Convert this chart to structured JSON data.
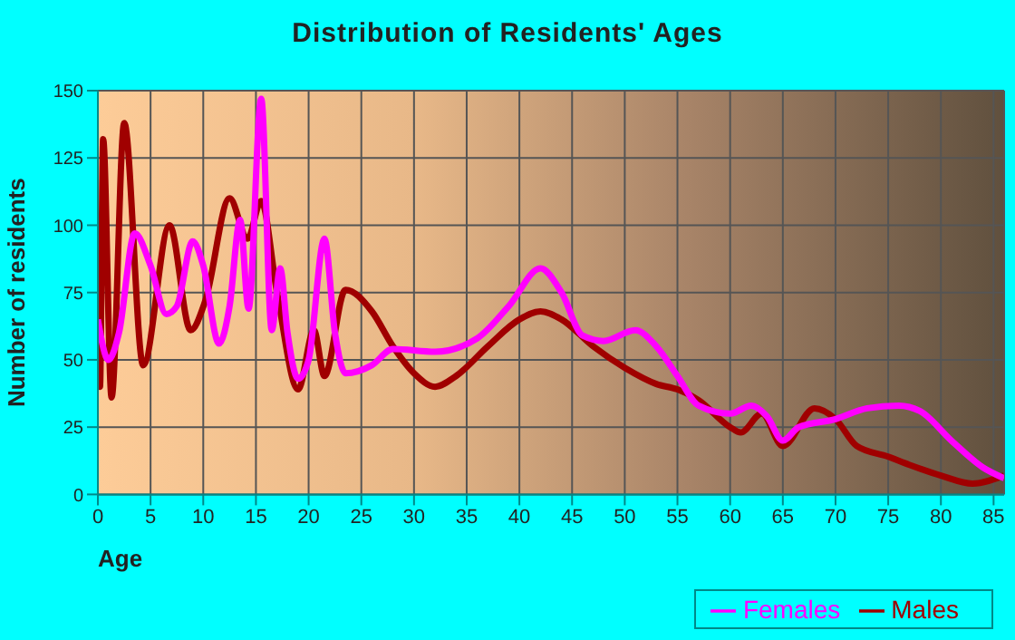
{
  "chart_data": {
    "type": "line",
    "title": "Distribution of Residents' Ages",
    "xlabel": "Age",
    "ylabel": "Number of residents",
    "xlim": [
      0,
      86
    ],
    "xticks": [
      0,
      5,
      10,
      15,
      20,
      25,
      30,
      35,
      40,
      45,
      50,
      55,
      60,
      65,
      70,
      75,
      80,
      85
    ],
    "ylim": [
      0,
      150
    ],
    "yticks": [
      0,
      25,
      50,
      75,
      100,
      125,
      150
    ],
    "grid": true,
    "legend": "bottom right",
    "marker": "none",
    "line_style": "solid",
    "series": [
      {
        "name": "Males",
        "color": "#a00000",
        "x": [
          0,
          0.2,
          0.5,
          1.3,
          2.5,
          4.3,
          6.8,
          8.8,
          10.2,
          12.5,
          14.2,
          15.5,
          17,
          19,
          20.5,
          21.5,
          23.5,
          26,
          28,
          30,
          32,
          34,
          37,
          40,
          42,
          44,
          47,
          50,
          53,
          55,
          57,
          60,
          61,
          63,
          65,
          68,
          70,
          72,
          75,
          77,
          80,
          83,
          86
        ],
        "values": [
          75,
          40,
          132,
          36,
          138,
          48,
          100,
          61,
          72,
          110,
          95,
          109,
          75,
          39,
          61,
          44,
          76,
          68,
          55,
          45,
          40,
          44,
          55,
          65,
          68,
          65,
          55,
          47,
          41,
          39,
          35,
          25,
          23,
          30,
          18,
          32,
          28,
          18,
          14,
          11,
          7,
          4,
          7
        ]
      },
      {
        "name": "Females",
        "color": "#ff00ff",
        "x": [
          0,
          1,
          2,
          3.5,
          5,
          6.5,
          7.5,
          9,
          10,
          11.5,
          12.5,
          13.5,
          14.3,
          15.5,
          16.5,
          17.3,
          18,
          19,
          20,
          21.5,
          22.5,
          23.5,
          26,
          28,
          32,
          36,
          39,
          42,
          44,
          46,
          48,
          51,
          53,
          55,
          57,
          60,
          62,
          63.5,
          65,
          66.5,
          70,
          73,
          76,
          78,
          81,
          84,
          86
        ],
        "values": [
          65,
          50,
          60,
          97,
          85,
          67,
          70,
          94,
          85,
          56,
          70,
          102,
          69,
          147,
          61,
          84,
          60,
          43,
          50,
          95,
          60,
          45,
          48,
          54,
          53,
          58,
          70,
          84,
          75,
          59,
          57,
          61,
          55,
          44,
          33,
          30,
          33,
          29,
          20,
          25,
          28,
          32,
          33,
          31,
          20,
          10,
          6
        ]
      }
    ]
  }
}
